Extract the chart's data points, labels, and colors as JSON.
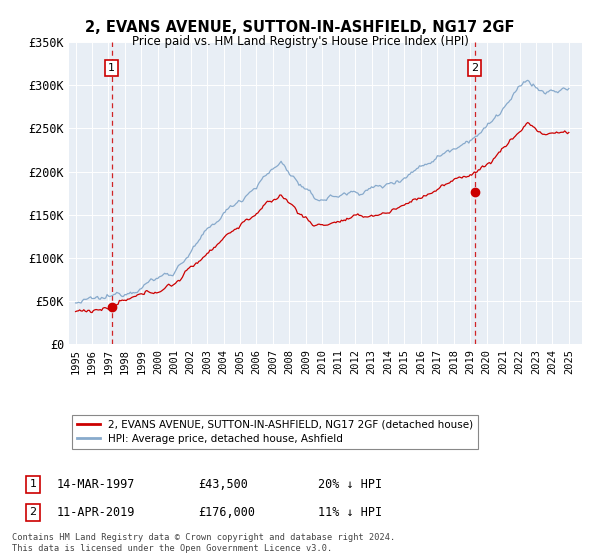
{
  "title": "2, EVANS AVENUE, SUTTON-IN-ASHFIELD, NG17 2GF",
  "subtitle": "Price paid vs. HM Land Registry's House Price Index (HPI)",
  "ylabel_ticks": [
    "£0",
    "£50K",
    "£100K",
    "£150K",
    "£200K",
    "£250K",
    "£300K",
    "£350K"
  ],
  "ylim": [
    0,
    350000
  ],
  "xlim_start": 1994.6,
  "xlim_end": 2025.8,
  "sale1_date": 1997.2,
  "sale1_price": 43500,
  "sale1_label": "1",
  "sale1_text": "14-MAR-1997",
  "sale1_amount": "£43,500",
  "sale1_hpi": "20% ↓ HPI",
  "sale2_date": 2019.27,
  "sale2_price": 176000,
  "sale2_label": "2",
  "sale2_text": "11-APR-2019",
  "sale2_amount": "£176,000",
  "sale2_hpi": "11% ↓ HPI",
  "property_color": "#cc0000",
  "hpi_color": "#88aacc",
  "background_color": "#e8eef5",
  "plot_bg_color": "#e8eef5",
  "legend_property": "2, EVANS AVENUE, SUTTON-IN-ASHFIELD, NG17 2GF (detached house)",
  "legend_hpi": "HPI: Average price, detached house, Ashfield",
  "copyright_text": "Contains HM Land Registry data © Crown copyright and database right 2024.\nThis data is licensed under the Open Government Licence v3.0."
}
